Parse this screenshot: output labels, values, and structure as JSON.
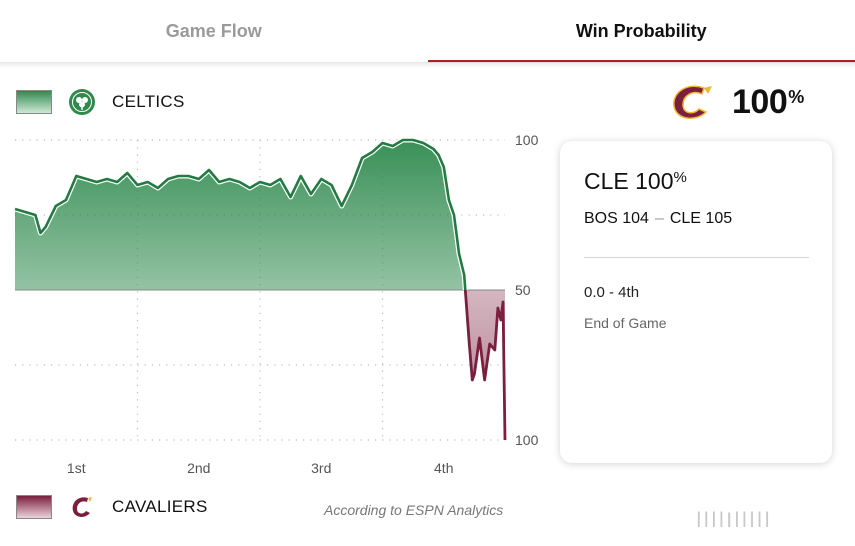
{
  "tabs": [
    {
      "label": "Game Flow",
      "active": false
    },
    {
      "label": "Win Probability",
      "active": true
    }
  ],
  "teams": {
    "home": {
      "name": "CELTICS",
      "abbr": "BOS",
      "color": "#2f8a4e",
      "logo_icon": "celtics-logo-icon"
    },
    "away": {
      "name": "CAVALIERS",
      "abbr": "CLE",
      "color": "#7a1f3d",
      "logo_icon": "cavaliers-logo-icon"
    }
  },
  "winner": {
    "percent": "100",
    "percent_sign": "%",
    "logo_icon": "cavaliers-logo-icon"
  },
  "panel": {
    "title_team": "CLE",
    "title_value": "100",
    "title_sign": "%",
    "score_home": "BOS 104",
    "score_dash": "–",
    "score_away": "CLE 105",
    "time": "0.0 - 4th",
    "status": "End of Game"
  },
  "source_text": "According to ESPN Analytics",
  "watermark": "llllꓲlllll",
  "chart_data": {
    "type": "area",
    "x_label": "",
    "y_label": "",
    "x_ticks": [
      "1st",
      "2nd",
      "3rd",
      "4th"
    ],
    "y_ticks": [
      "100",
      "50",
      "100"
    ],
    "x_range": [
      0,
      48
    ],
    "y_range": [
      -50,
      50
    ],
    "series": [
      {
        "x": [
          0,
          1,
          2,
          2.5,
          3,
          4,
          5,
          6,
          7,
          8,
          9,
          10,
          11,
          12,
          13,
          14,
          15,
          16,
          17,
          18,
          19,
          20,
          21,
          22,
          23,
          24,
          25,
          26,
          27,
          28,
          29,
          30,
          31,
          32,
          33,
          34,
          35,
          36,
          37,
          38,
          39,
          40,
          41,
          41.5,
          42,
          42.5,
          43,
          43.5,
          44,
          44.5,
          44.8,
          45,
          45.5,
          46,
          46.5,
          47,
          47.3,
          47.6,
          47.8,
          48
        ],
        "y": [
          27,
          26,
          25,
          19,
          21,
          28,
          30,
          38,
          37,
          36,
          37,
          36,
          39,
          35,
          36,
          34,
          37,
          38,
          38,
          37,
          40,
          36,
          37,
          36,
          34,
          36,
          35,
          37,
          31,
          38,
          32,
          37,
          35,
          28,
          35,
          44,
          46,
          49,
          48,
          50,
          50,
          49,
          47,
          45,
          41,
          30,
          25,
          12,
          5,
          -18,
          -30,
          -28,
          -16,
          -30,
          -18,
          -20,
          -6,
          -10,
          -4,
          -50
        ]
      }
    ]
  }
}
